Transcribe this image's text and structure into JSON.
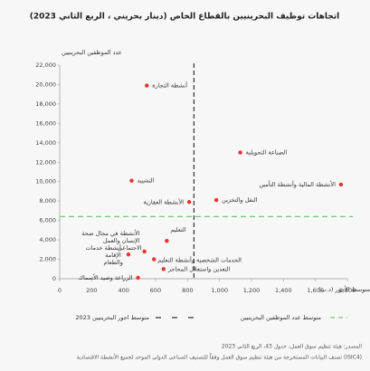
{
  "chart_data": {
    "type": "scatter",
    "title": "اتجاهات توظيف البحرينيين بالقطاع الخاص (دينار بحريني ، الربع الثاني 2023)",
    "ylabel": "عدد الموظفين البحرينيين",
    "xlabel": "متوسط الأجور (د.ب)",
    "labels": [
      "أنشطة التجارة",
      "الصناعة التحويلية",
      "الأنشطة المالية وأنشطة التأمين",
      "التشييد",
      "النقل والتخزين",
      "الأنشطة العقارية",
      "التعليم",
      "الأنشطة في مجال صحة الإنسان والعمل الاجتماعي",
      "أنشطة خدمات الإقامة والطعام",
      "الخدمات الشخصية وأنشطة التعليم",
      "التعدين واستغلال المحاجر",
      "الزراعة وصيد الأسماك"
    ],
    "x": [
      545,
      1130,
      1760,
      450,
      980,
      810,
      670,
      530,
      430,
      590,
      650,
      490
    ],
    "values": [
      19900,
      13000,
      9700,
      10100,
      8100,
      7900,
      3900,
      2800,
      2500,
      2000,
      1000,
      100
    ],
    "color": "#e8332e",
    "xlim": [
      0,
      1800
    ],
    "xticks": [
      0,
      200,
      400,
      600,
      800,
      {
        "value": 1000,
        "label": "1,000"
      },
      {
        "value": 1200,
        "label": "1,200"
      },
      {
        "value": 1400,
        "label": "1,400"
      },
      {
        "value": 1600,
        "label": "1,600"
      },
      {
        "value": 1800,
        "label": "1,800"
      }
    ],
    "ylim": [
      0,
      22000
    ],
    "yticks": [
      0,
      {
        "value": 2000,
        "label": "2,000"
      },
      {
        "value": 4000,
        "label": "4,000"
      },
      {
        "value": 6000,
        "label": "6,000"
      },
      {
        "value": 8000,
        "label": "8,000"
      },
      {
        "value": 10000,
        "label": "10,000"
      },
      {
        "value": 12000,
        "label": "12,000"
      },
      {
        "value": 14000,
        "label": "14,000"
      },
      {
        "value": 16000,
        "label": "16,000"
      },
      {
        "value": 18000,
        "label": "18,000"
      },
      {
        "value": 20000,
        "label": "20,000"
      },
      {
        "value": 22000,
        "label": "22,000"
      }
    ],
    "reference_lines": [
      {
        "axis": "x",
        "value": 840,
        "label": "متوسط اجور البحرينيين 2023",
        "color": "#333333"
      },
      {
        "axis": "y",
        "value": 6400,
        "label": "متوسط عدد الموظفين البحرينيين",
        "color": "#7cc47a"
      }
    ],
    "notes": [
      "المصدر: هيئة تنظيم سوق العمل، جدول 43، الربع الثاني 2023",
      "تصنف البيانات المستخرجة من هيئة تنظيم سوق العمل وفقاً للتصنيف الصناعي الدولي الموحد لجميع الأنشطة الاقتصادية (ISIC4)"
    ]
  }
}
